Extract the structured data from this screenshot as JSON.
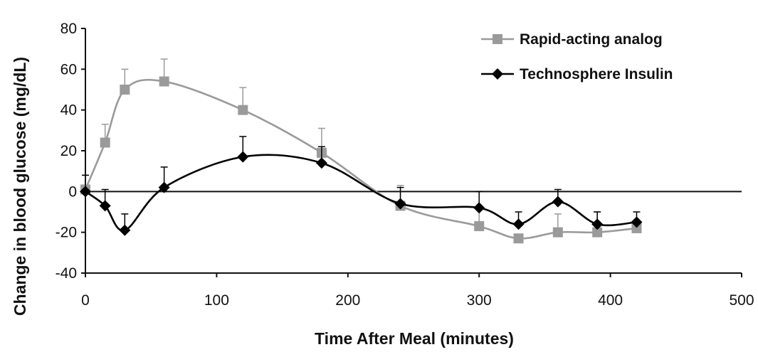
{
  "chart_data": {
    "type": "line",
    "title": "",
    "xlabel": "Time After Meal (minutes)",
    "ylabel": "Change in blood glucose  (mg/dL)",
    "xlim": [
      0,
      500
    ],
    "ylim": [
      -40,
      80
    ],
    "xticks": [
      0,
      100,
      200,
      300,
      400,
      500
    ],
    "yticks": [
      -40,
      -20,
      0,
      20,
      40,
      60,
      80
    ],
    "xtick_labels": [
      "0",
      "100",
      "200",
      "300",
      "400",
      "500"
    ],
    "ytick_labels": [
      "-40",
      "-20",
      "0",
      "20",
      "40",
      "60",
      "80"
    ],
    "grid": false,
    "legend_position": "top-right",
    "smooth": true,
    "error_bars": "upward",
    "series": [
      {
        "name": "Rapid-acting analog",
        "color": "#9a9a9a",
        "marker": "square",
        "x": [
          0,
          15,
          30,
          60,
          120,
          180,
          240,
          300,
          330,
          360,
          390,
          420
        ],
        "y": [
          1,
          24,
          50,
          54,
          40,
          19,
          -7,
          -17,
          -23,
          -20,
          -20,
          -18
        ],
        "err": [
          7,
          9,
          10,
          11,
          11,
          12,
          10,
          9,
          0,
          9,
          10,
          0
        ]
      },
      {
        "name": "Technosphere Insulin",
        "color": "#000000",
        "marker": "diamond",
        "x": [
          0,
          15,
          30,
          60,
          120,
          180,
          240,
          300,
          330,
          360,
          390,
          420
        ],
        "y": [
          0,
          -7,
          -19,
          2,
          17,
          14,
          -6,
          -8,
          -16,
          -5,
          -16,
          -15
        ],
        "err": [
          8,
          8,
          8,
          10,
          10,
          8,
          8,
          8,
          6,
          6,
          6,
          5
        ]
      }
    ]
  }
}
